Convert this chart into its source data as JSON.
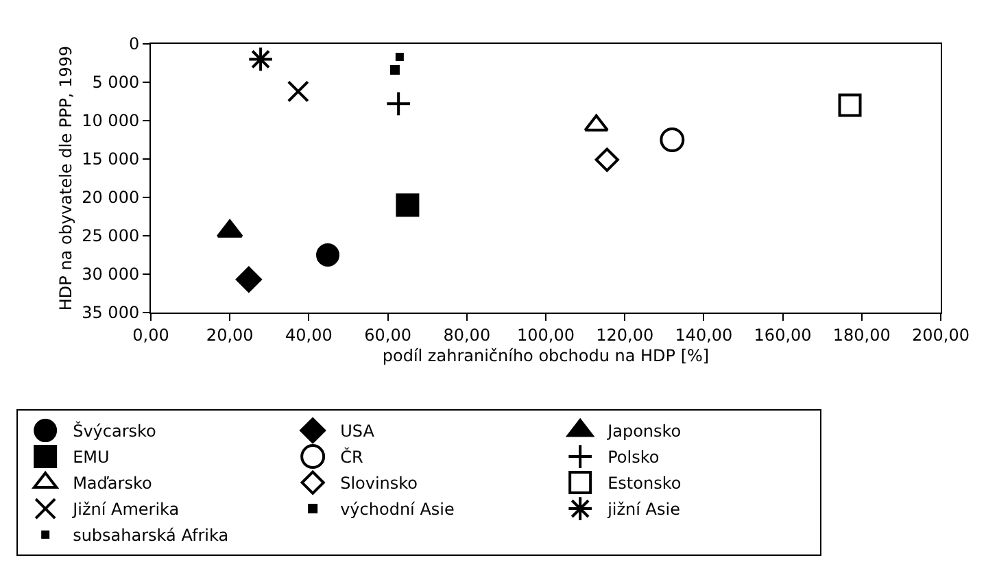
{
  "chart_data": {
    "type": "scatter",
    "xlabel": "podíl zahraničního obchodu na HDP [%]",
    "ylabel": "HDP na obyvatele dle PPP, 1999",
    "xlim": [
      0,
      200
    ],
    "ylim": [
      35000,
      0
    ],
    "xticks": [
      {
        "value": 0,
        "label": "0,00"
      },
      {
        "value": 20,
        "label": "20,00"
      },
      {
        "value": 40,
        "label": "40,00"
      },
      {
        "value": 60,
        "label": "60,00"
      },
      {
        "value": 80,
        "label": "80,00"
      },
      {
        "value": 100,
        "label": "100,00"
      },
      {
        "value": 120,
        "label": "120,00"
      },
      {
        "value": 140,
        "label": "140,00"
      },
      {
        "value": 160,
        "label": "160,00"
      },
      {
        "value": 180,
        "label": "180,00"
      },
      {
        "value": 200,
        "label": "200,00"
      }
    ],
    "yticks": [
      0,
      {
        "value": 5000,
        "label": "5 000"
      },
      {
        "value": 10000,
        "label": "10 000"
      },
      {
        "value": 15000,
        "label": "15 000"
      },
      {
        "value": 20000,
        "label": "20 000"
      },
      {
        "value": 25000,
        "label": "25 000"
      },
      {
        "value": 30000,
        "label": "30 000"
      },
      {
        "value": 35000,
        "label": "35 000"
      }
    ],
    "legend": "bottom",
    "series": [
      {
        "name": "Švýcarsko",
        "color": "#000000",
        "marker": "circle",
        "x": [
          44.8
        ],
        "values": [
          27500
        ]
      },
      {
        "name": "USA",
        "color": "#000000",
        "marker": "diamond",
        "x": [
          24.8
        ],
        "values": [
          30700
        ]
      },
      {
        "name": "Japonsko",
        "color": "#000000",
        "marker": "triangle",
        "x": [
          20
        ],
        "values": [
          24400
        ]
      },
      {
        "name": "EMU",
        "color": "#000000",
        "marker": "square",
        "x": [
          65
        ],
        "values": [
          21000
        ]
      },
      {
        "name": "ČR",
        "color": "#000000",
        "marker": "circle-open",
        "x": [
          132
        ],
        "values": [
          12500
        ]
      },
      {
        "name": "Polsko",
        "color": "#000000",
        "marker": "cross",
        "x": [
          62.7
        ],
        "values": [
          7800
        ]
      },
      {
        "name": "Maďarsko",
        "color": "#000000",
        "marker": "triangle-open",
        "x": [
          112.8
        ],
        "values": [
          10600
        ]
      },
      {
        "name": "Slovinsko",
        "color": "#000000",
        "marker": "diamond-open",
        "x": [
          115.5
        ],
        "values": [
          15100
        ]
      },
      {
        "name": "Estonsko",
        "color": "#000000",
        "marker": "square-open",
        "x": [
          177
        ],
        "values": [
          8000
        ]
      },
      {
        "name": "Jižní Amerika",
        "color": "#000000",
        "marker": "x",
        "x": [
          37.3
        ],
        "values": [
          6200
        ]
      },
      {
        "name": "východní Asie",
        "color": "#000000",
        "marker": "square",
        "x": [
          61.8
        ],
        "values": [
          3400
        ]
      },
      {
        "name": "jižní Asie",
        "color": "#000000",
        "marker": "cross",
        "x": [
          27.8
        ],
        "values": [
          2000
        ]
      },
      {
        "name": "subsaharská Afrika",
        "color": "#000000",
        "marker": "square",
        "x": [
          63
        ],
        "values": [
          1700
        ]
      }
    ]
  }
}
